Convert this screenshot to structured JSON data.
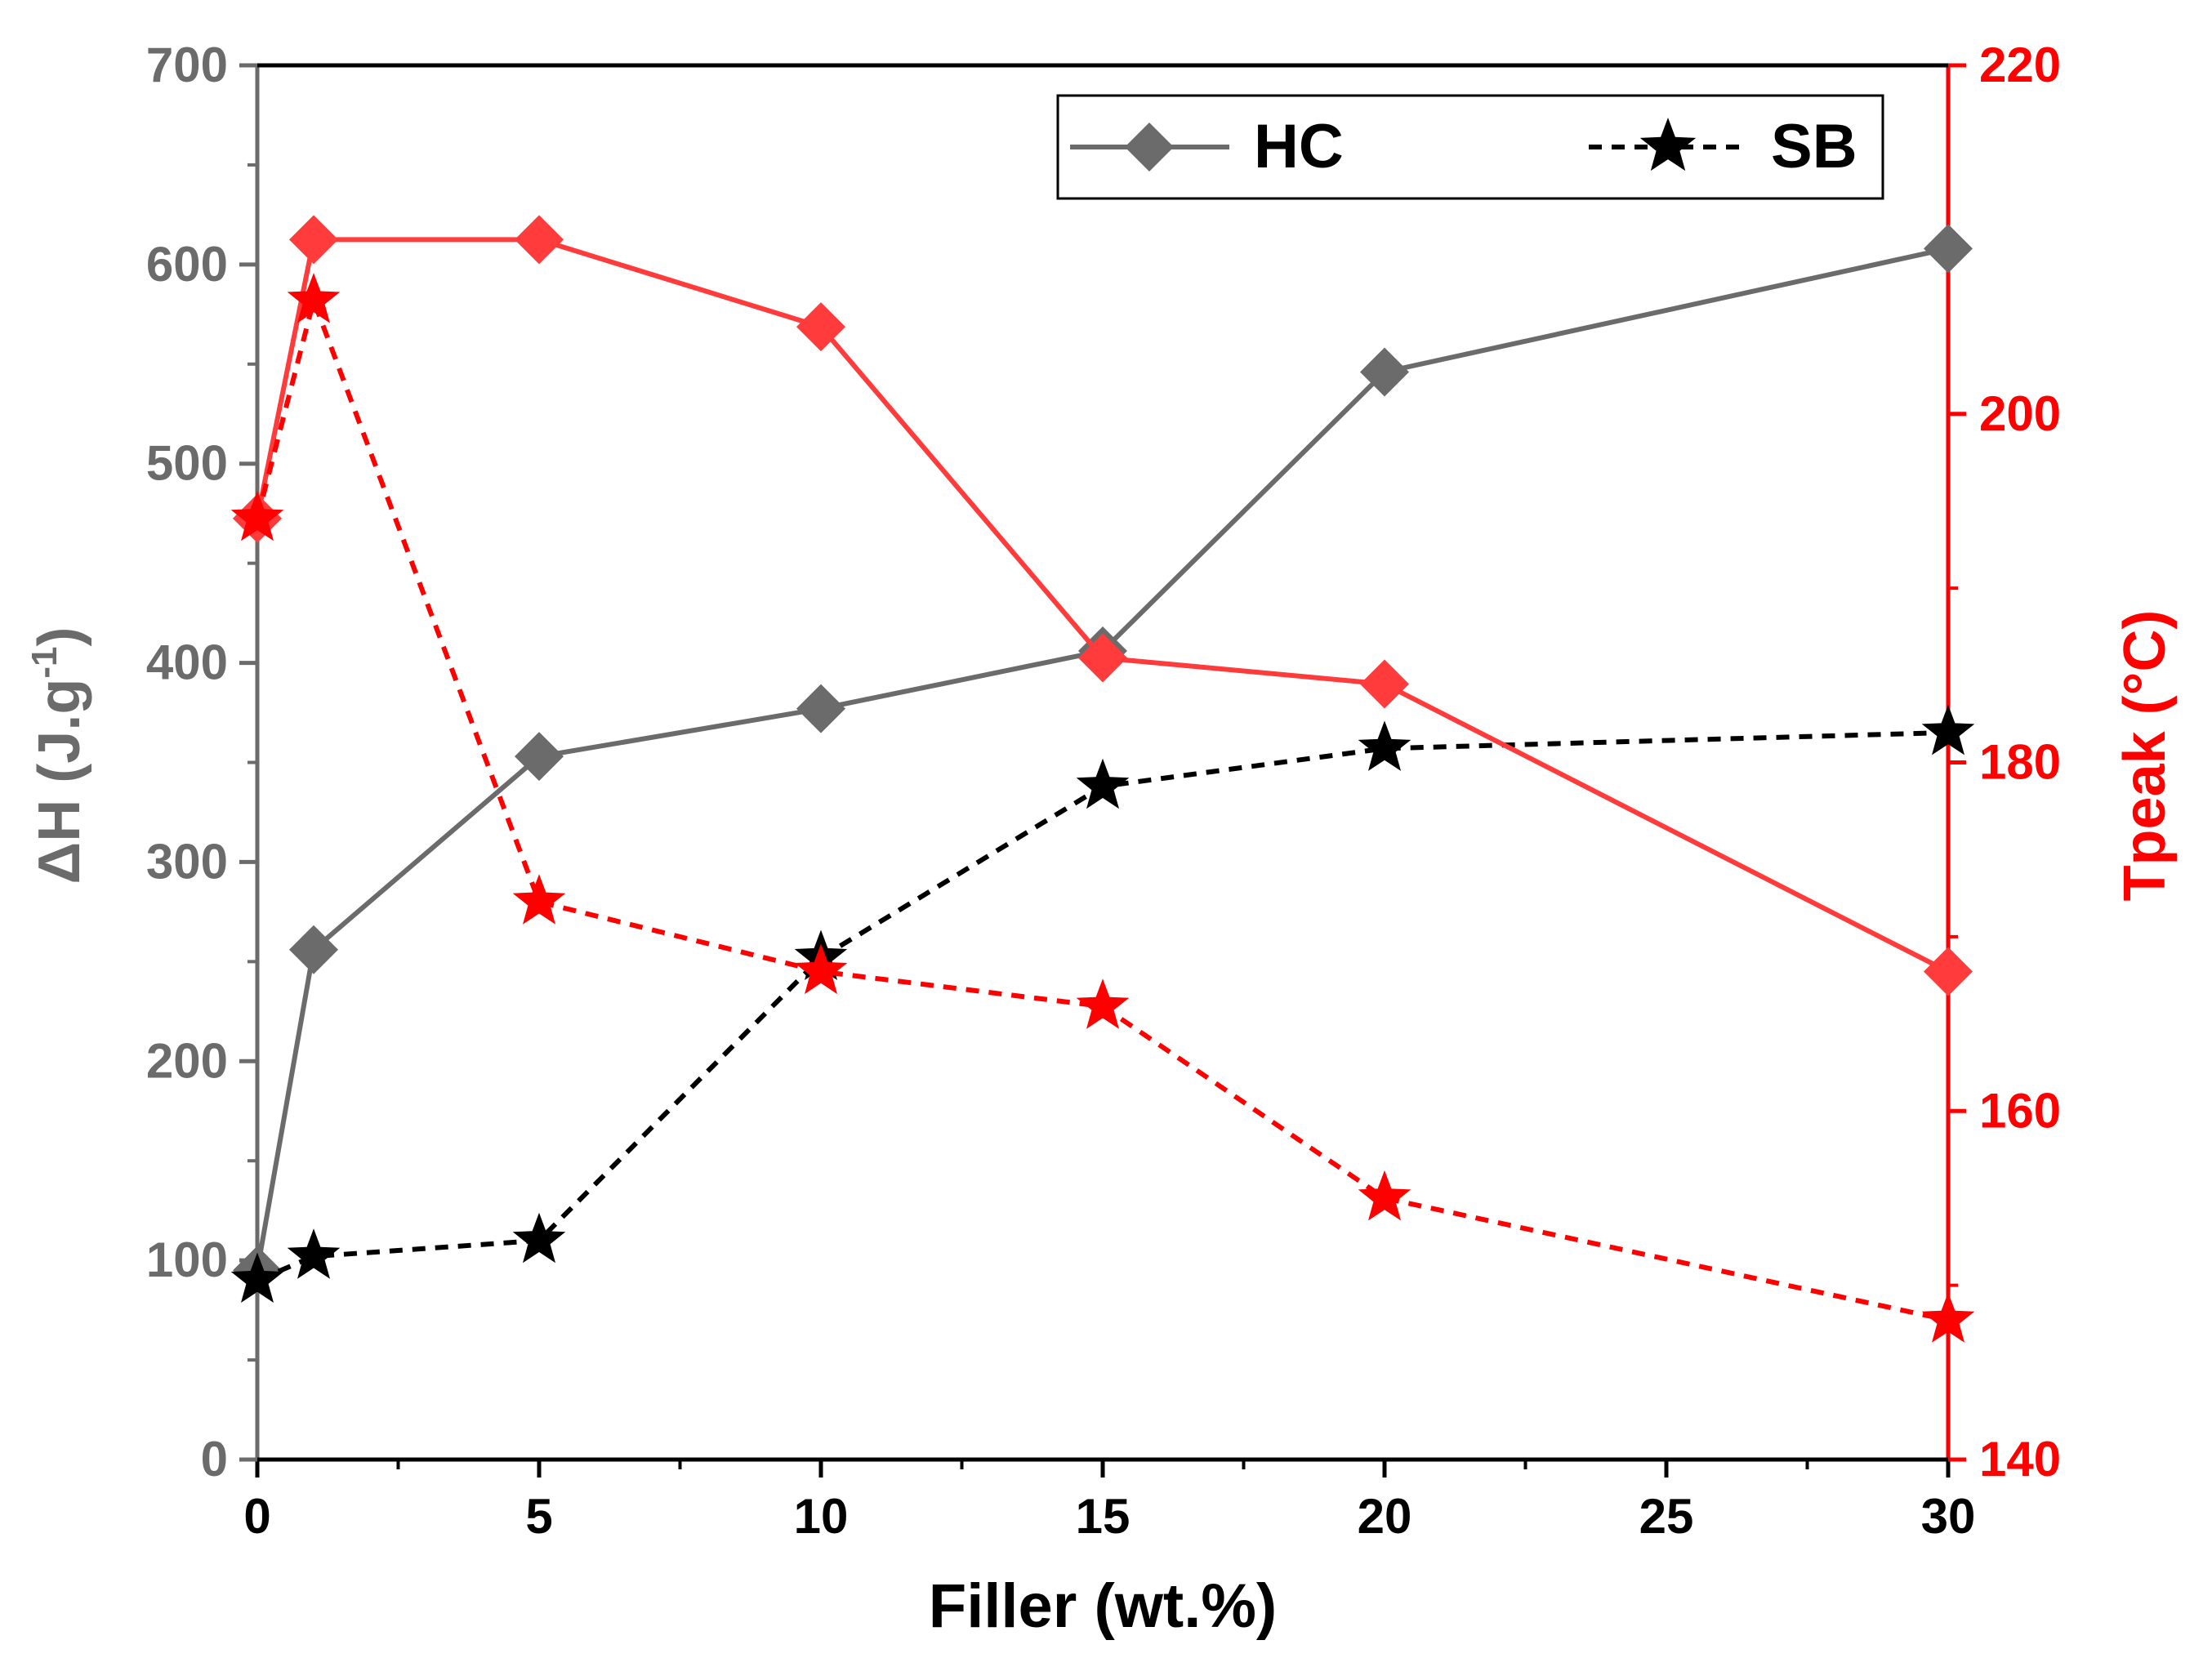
{
  "chart_data": {
    "type": "line",
    "x": [
      0,
      1,
      5,
      10,
      15,
      20,
      30
    ],
    "xlabel": "Filler (wt.%)",
    "x_ticks": [
      0,
      5,
      10,
      15,
      20,
      25,
      30
    ],
    "x_tick_labels": [
      "0",
      "5",
      "10",
      "15",
      "20",
      "25",
      "30"
    ],
    "left_axis": {
      "label_main": "ΔH (J.g",
      "label_sup": "-1",
      "label_close": ")",
      "ylim": [
        0,
        700
      ],
      "ticks": [
        0,
        100,
        200,
        300,
        400,
        500,
        600,
        700
      ],
      "tick_labels": [
        "0",
        "100",
        "200",
        "300",
        "400",
        "500",
        "600",
        "700"
      ],
      "color": "#6b6b6b"
    },
    "right_axis": {
      "label": "Tpeak (°C)",
      "ylim": [
        140,
        220
      ],
      "ticks": [
        140,
        160,
        180,
        200,
        220
      ],
      "tick_labels": [
        "140",
        "160",
        "180",
        "200",
        "220"
      ],
      "color": "#ff0000"
    },
    "series": [
      {
        "name": "HC",
        "axis": "left",
        "marker": "diamond",
        "line": "solid",
        "color": "#6b6b6b",
        "values": [
          95,
          256,
          353,
          377,
          406,
          546,
          608
        ]
      },
      {
        "name": "SB",
        "axis": "left",
        "marker": "star",
        "line": "dashed",
        "color": "#000000",
        "values": [
          90,
          102,
          110,
          252,
          338,
          357,
          365
        ]
      },
      {
        "name": "HC",
        "axis": "right",
        "marker": "diamond",
        "line": "solid",
        "color": "#ff3b3b",
        "values": [
          194,
          210,
          210,
          205,
          186,
          184.5,
          168
        ]
      },
      {
        "name": "SB",
        "axis": "right",
        "marker": "star",
        "line": "dashed",
        "color": "#ff0000",
        "values": [
          194,
          206.5,
          172,
          168,
          166,
          155,
          148
        ]
      }
    ],
    "legend": {
      "position": "top-right",
      "entries": [
        {
          "label": "HC",
          "marker": "diamond",
          "line": "solid",
          "color": "#6b6b6b"
        },
        {
          "label": "SB",
          "marker": "star",
          "line": "dashed",
          "color": "#000000"
        }
      ]
    }
  }
}
